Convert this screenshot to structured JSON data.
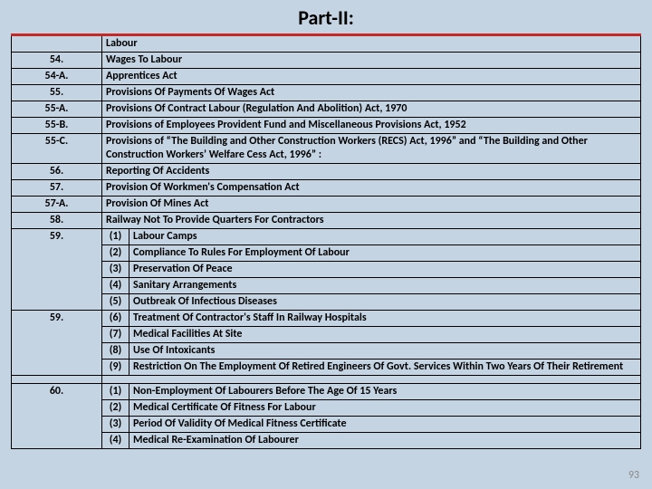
{
  "title": "Part-II:",
  "header": {
    "col2": "Labour"
  },
  "rows": [
    {
      "num": "54.",
      "text": "Wages To Labour"
    },
    {
      "num": "54-A.",
      "text": "Apprentices Act"
    },
    {
      "num": "55.",
      "text": "Provisions Of Payments Of Wages Act"
    },
    {
      "num": "55-A.",
      "text": "Provisions Of Contract Labour (Regulation And Abolition) Act, 1970"
    },
    {
      "num": "55-B.",
      "text": "Provisions of Employees Provident Fund and Miscellaneous Provisions Act, 1952"
    },
    {
      "num": "55-C.",
      "text": "Provisions of “The Building and Other Construction Workers (RECS) Act, 1996” and “The Building and Other Construction Workers’ Welfare Cess Act, 1996” :"
    },
    {
      "num": "56.",
      "text": "Reporting Of Accidents"
    },
    {
      "num": "57.",
      "text": "Provision Of Workmen's Compensation Act"
    },
    {
      "num": "57-A.",
      "text": "Provision Of Mines Act"
    },
    {
      "num": "58.",
      "text": "Railway Not To Provide Quarters For Contractors"
    }
  ],
  "group59a": {
    "num": "59.",
    "items": [
      {
        "sub": "(1)",
        "text": "Labour Camps"
      },
      {
        "sub": "(2)",
        "text": "Compliance To Rules For Employment Of Labour"
      },
      {
        "sub": "(3)",
        "text": "Preservation Of Peace"
      },
      {
        "sub": "(4)",
        "text": "Sanitary Arrangements"
      },
      {
        "sub": "(5)",
        "text": "Outbreak Of Infectious Diseases"
      }
    ]
  },
  "group59b": {
    "num": "59.",
    "items": [
      {
        "sub": "(6)",
        "text": "Treatment Of Contractor's Staff In Railway Hospitals"
      },
      {
        "sub": "(7)",
        "text": "Medical Facilities At Site"
      },
      {
        "sub": "(8)",
        "text": "Use Of Intoxicants"
      },
      {
        "sub": "(9)",
        "text": "Restriction On The Employment Of Retired Engineers Of Govt. Services Within Two Years Of Their Retirement"
      }
    ]
  },
  "group60": {
    "num": "60.",
    "items": [
      {
        "sub": "(1)",
        "text": "Non-Employment Of Labourers Before The Age Of 15 Years"
      },
      {
        "sub": "(2)",
        "text": "Medical Certificate Of Fitness For Labour"
      },
      {
        "sub": "(3)",
        "text": "Period Of Validity Of Medical Fitness Certificate"
      },
      {
        "sub": "(4)",
        "text": "Medical Re-Examination Of Labourer"
      }
    ]
  },
  "page_number": "93"
}
